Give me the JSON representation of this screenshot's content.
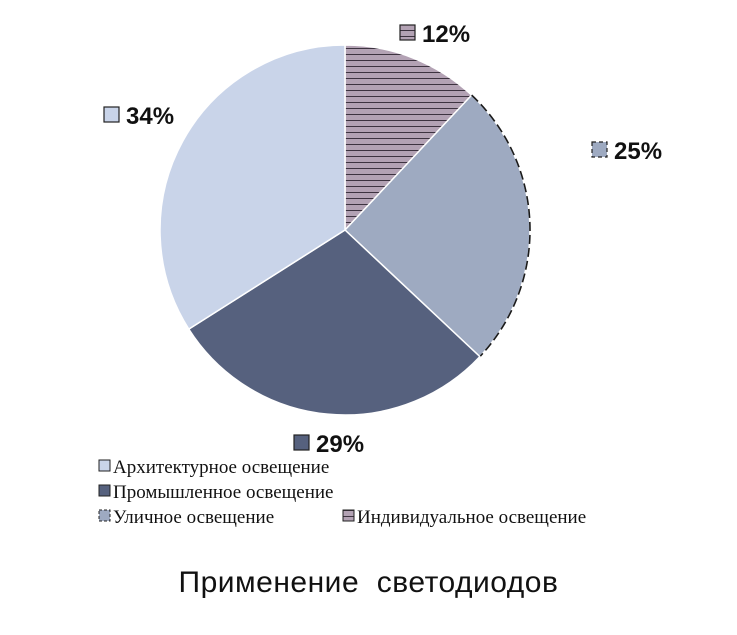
{
  "chart_data": {
    "type": "pie",
    "title": "Применение  светодиодов",
    "start": "12 o'clock, clockwise",
    "slices": [
      {
        "label": "Индивидуальное освещение",
        "value": 12,
        "display": "12%",
        "color": "#b3a2b4",
        "pattern": "horizontal-stripes"
      },
      {
        "label": "Уличное освещение",
        "value": 25,
        "display": "25%",
        "color": "#9eaac1",
        "pattern": "none",
        "border": "dashed"
      },
      {
        "label": "Промышленное освещение",
        "value": 29,
        "display": "29%",
        "color": "#56617e",
        "pattern": "none"
      },
      {
        "label": "Архитектурное освещение",
        "value": 34,
        "display": "34%",
        "color": "#c9d4e9",
        "pattern": "none"
      }
    ],
    "legend": [
      "Архитектурное освещение",
      "Промышленное освещение",
      "Уличное освещение",
      "Индивидуальное освещение"
    ],
    "legend_position": "bottom"
  }
}
